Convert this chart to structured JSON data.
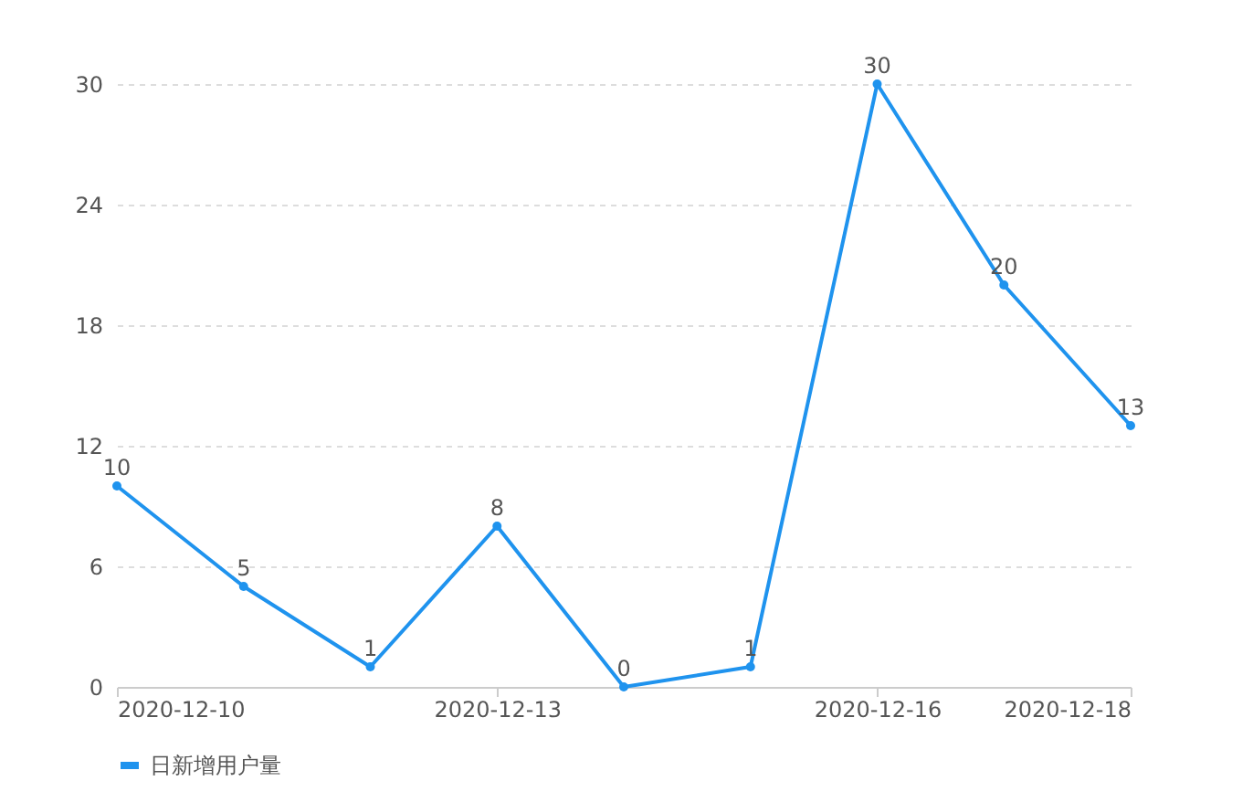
{
  "chart_data": {
    "type": "line",
    "x": [
      "2020-12-10",
      "2020-12-11",
      "2020-12-12",
      "2020-12-13",
      "2020-12-14",
      "2020-12-15",
      "2020-12-16",
      "2020-12-17",
      "2020-12-18"
    ],
    "series": [
      {
        "name": "日新增用户量",
        "color": "#1f93ee",
        "values": [
          10,
          5,
          1,
          8,
          0,
          1,
          30,
          20,
          13
        ]
      }
    ],
    "xlim": [
      "2020-12-10",
      "2020-12-18"
    ],
    "xticks": [
      "2020-12-10",
      "2020-12-13",
      "2020-12-16",
      "2020-12-18"
    ],
    "ylim": [
      0,
      30
    ],
    "yticks": [
      0,
      6,
      12,
      18,
      24,
      30
    ],
    "grid": "y",
    "legend": "bottom",
    "marker": "circle",
    "line_style": "solid",
    "data_labels": true
  }
}
